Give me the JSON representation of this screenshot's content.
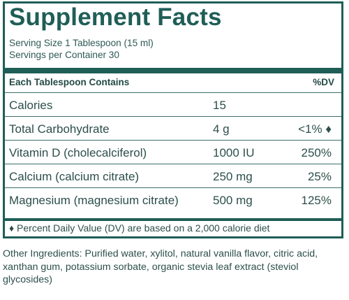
{
  "title": "Supplement Facts",
  "serving_size": "Serving Size 1 Tablespoon (15 ml)",
  "servings_per_container": "Servings per Container 30",
  "header": {
    "left": "Each Tablespoon Contains",
    "right": "%DV"
  },
  "rows": [
    {
      "name": "Calories",
      "amount": "15",
      "dv": ""
    },
    {
      "name": "Total Carbohydrate",
      "amount": "4 g",
      "dv": "<1% ♦"
    },
    {
      "name": "Vitamin D (cholecalciferol)",
      "amount": "1000 IU",
      "dv": "250%"
    },
    {
      "name": "Calcium (calcium citrate)",
      "amount": "250 mg",
      "dv": "25%"
    },
    {
      "name": "Magnesium (magnesium citrate)",
      "amount": "500 mg",
      "dv": "125%"
    }
  ],
  "footnote": "♦ Percent Daily Value (DV) are based on a 2,000 calorie diet",
  "other_ingredients": "Other Ingredients: Purified water, xylitol, natural vanilla flavor, citric acid, xanthan gum, potassium sorbate, organic stevia leaf extract (steviol glycosides)",
  "colors": {
    "brand": "#1f5e57",
    "text": "#2c4f4a"
  }
}
